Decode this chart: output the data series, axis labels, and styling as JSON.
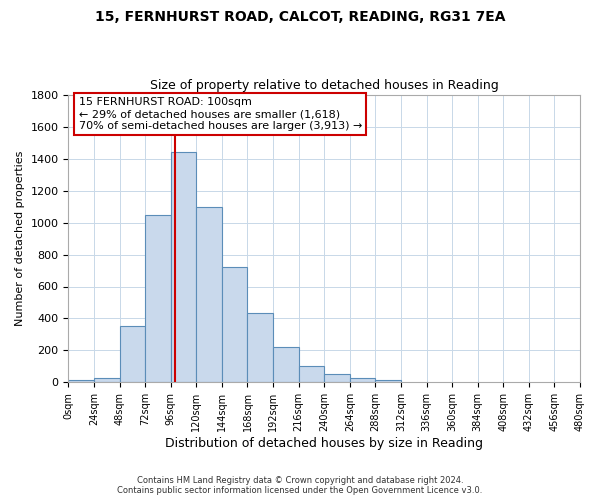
{
  "title1": "15, FERNHURST ROAD, CALCOT, READING, RG31 7EA",
  "title2": "Size of property relative to detached houses in Reading",
  "xlabel": "Distribution of detached houses by size in Reading",
  "ylabel": "Number of detached properties",
  "footer1": "Contains HM Land Registry data © Crown copyright and database right 2024.",
  "footer2": "Contains public sector information licensed under the Open Government Licence v3.0.",
  "bin_edges": [
    0,
    24,
    48,
    72,
    96,
    120,
    144,
    168,
    192,
    216,
    240,
    264,
    288,
    312,
    336,
    360,
    384,
    408,
    432,
    456,
    480
  ],
  "bin_counts": [
    15,
    30,
    350,
    1050,
    1440,
    1100,
    720,
    435,
    220,
    105,
    55,
    25,
    15,
    0,
    0,
    0,
    0,
    0,
    0,
    0
  ],
  "bar_color": "#c9d9ec",
  "bar_edge_color": "#5b8db8",
  "grid_color": "#c8d8e8",
  "property_line_x": 100,
  "property_line_color": "#cc0000",
  "annotation_box_color": "#ffffff",
  "annotation_box_edge": "#cc0000",
  "annotation_title": "15 FERNHURST ROAD: 100sqm",
  "annotation_line1": "← 29% of detached houses are smaller (1,618)",
  "annotation_line2": "70% of semi-detached houses are larger (3,913) →",
  "ylim": [
    0,
    1800
  ],
  "xlim": [
    0,
    480
  ],
  "tick_interval": 24,
  "background_color": "#ffffff",
  "yticks": [
    0,
    200,
    400,
    600,
    800,
    1000,
    1200,
    1400,
    1600,
    1800
  ]
}
